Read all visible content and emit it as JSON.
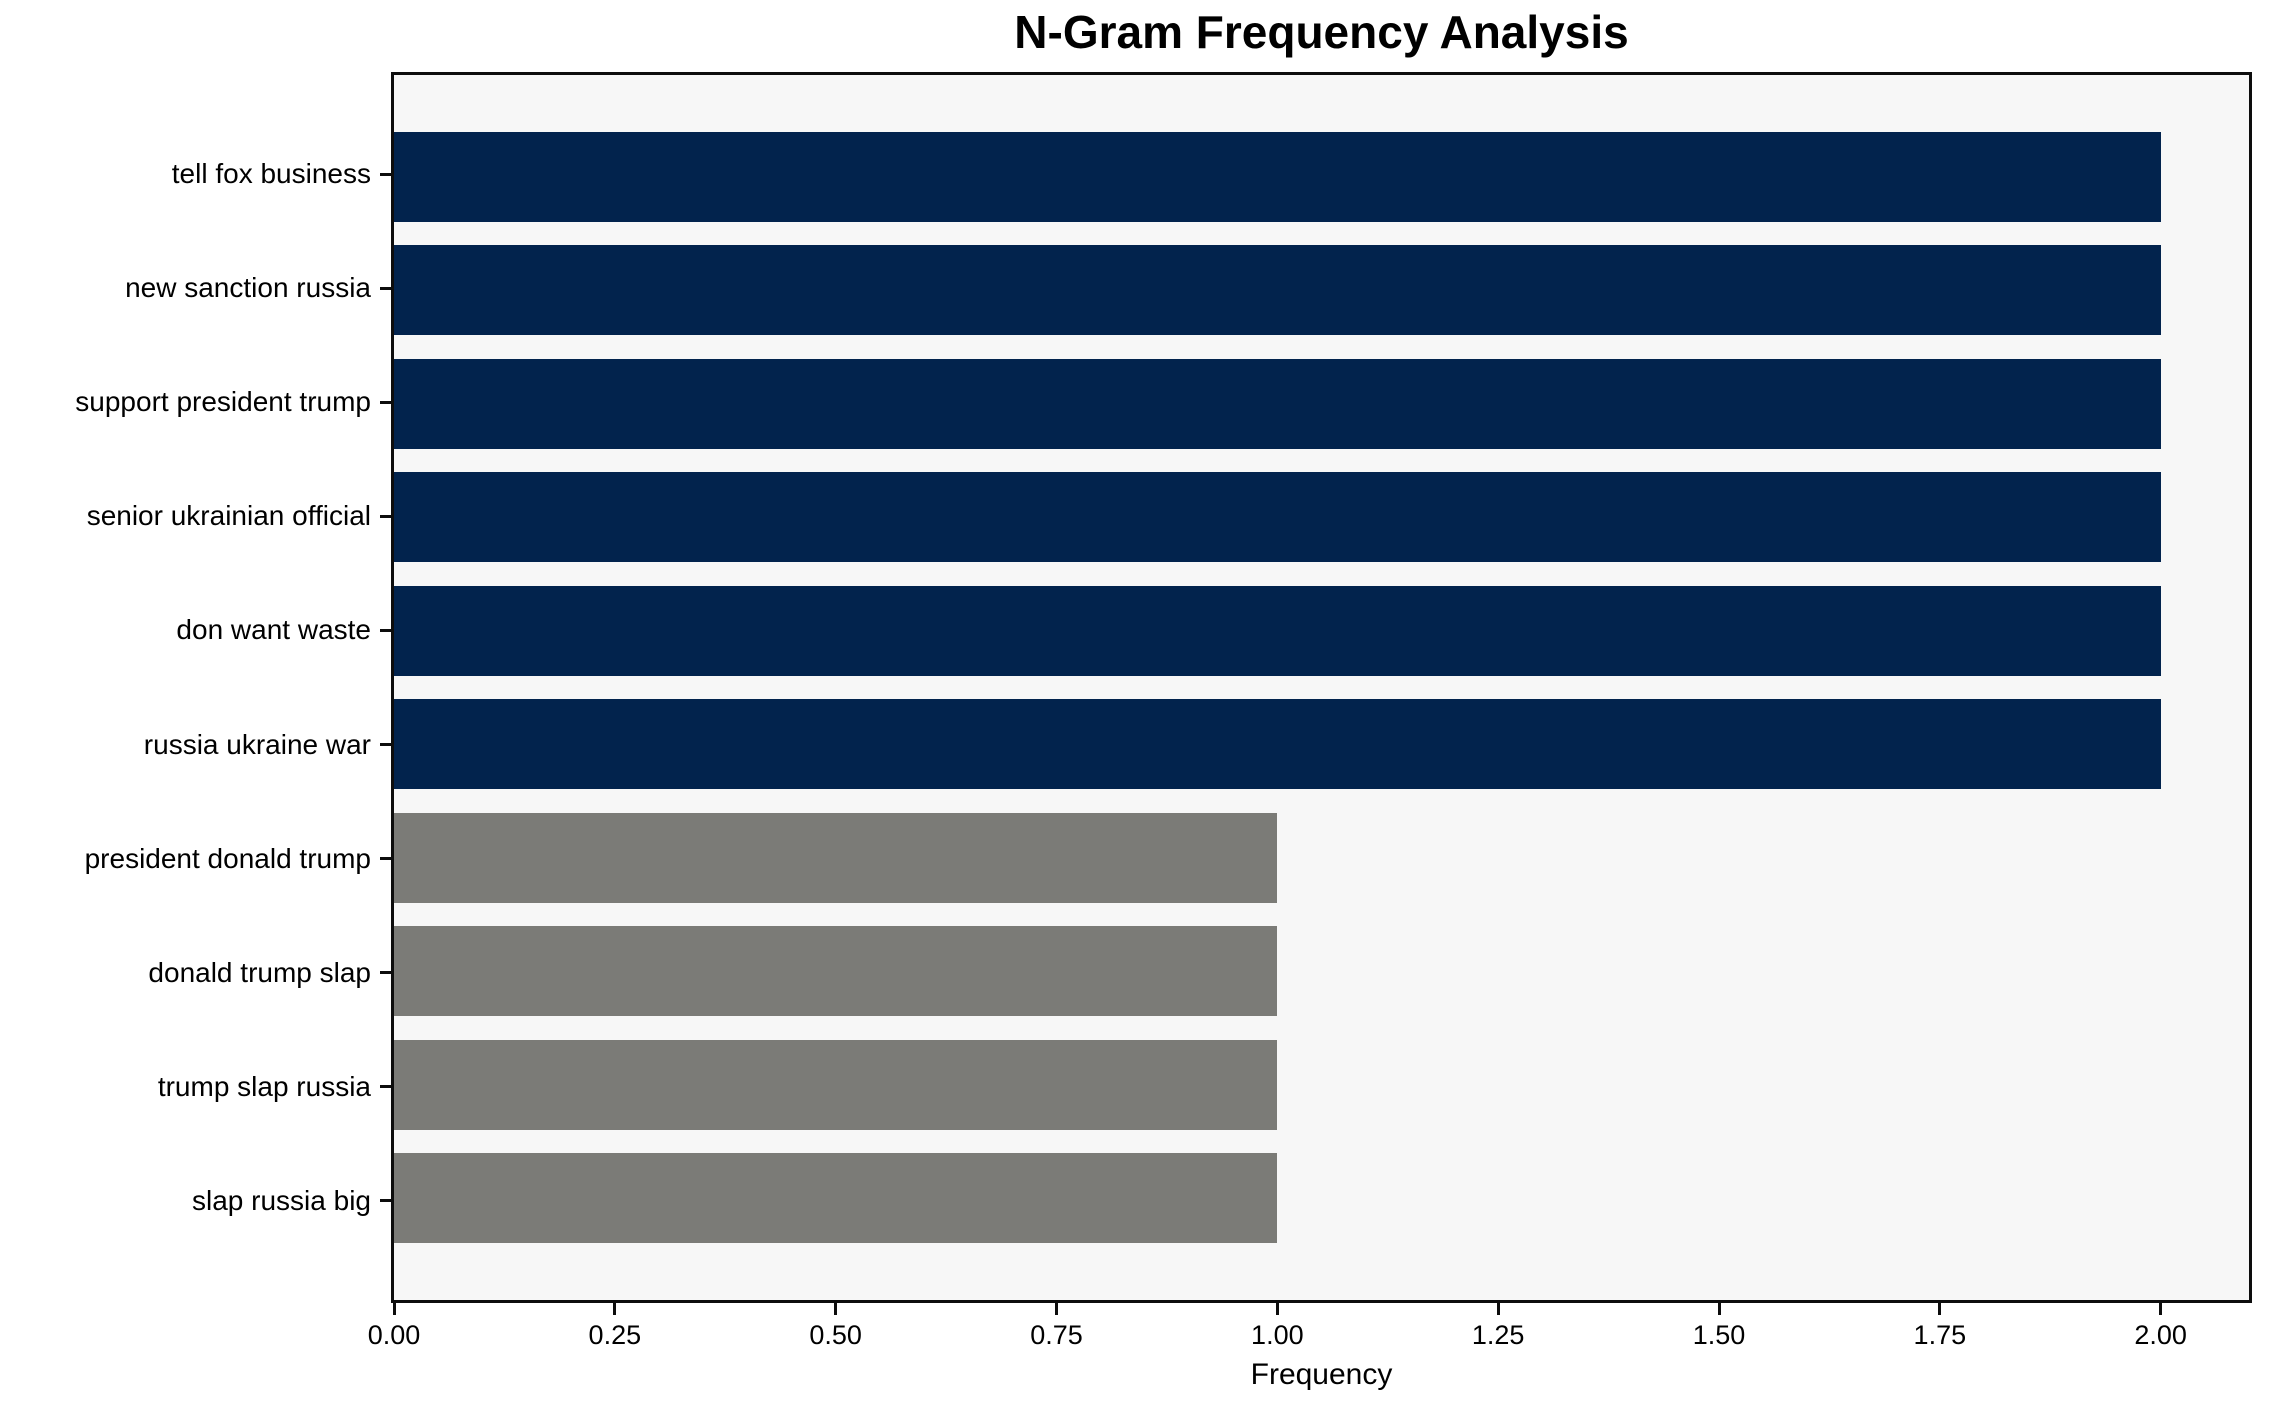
{
  "chart_data": {
    "type": "bar",
    "orientation": "horizontal",
    "title": "N-Gram Frequency Analysis",
    "xlabel": "Frequency",
    "ylabel": "",
    "categories": [
      "tell fox business",
      "new sanction russia",
      "support president trump",
      "senior ukrainian official",
      "don want waste",
      "russia ukraine war",
      "president donald trump",
      "donald trump slap",
      "trump slap russia",
      "slap russia big"
    ],
    "values": [
      2,
      2,
      2,
      2,
      2,
      2,
      1,
      1,
      1,
      1
    ],
    "bar_colors": [
      "#02234d",
      "#02234d",
      "#02234d",
      "#02234d",
      "#02234d",
      "#02234d",
      "#7b7b77",
      "#7b7b77",
      "#7b7b77",
      "#7b7b77"
    ],
    "xlim": [
      0,
      2.1
    ],
    "xticks": [
      0,
      0.25,
      0.5,
      0.75,
      1.0,
      1.25,
      1.5,
      1.75,
      2.0
    ],
    "xtick_labels": [
      "0.00",
      "0.25",
      "0.50",
      "0.75",
      "1.00",
      "1.25",
      "1.50",
      "1.75",
      "2.00"
    ],
    "grid": false,
    "legend": null,
    "colors": {
      "frequency_2_bar": "#02234d",
      "frequency_1_bar": "#7b7b77",
      "plot_background": "#f7f7f7",
      "figure_background": "#ffffff",
      "spine": "#0d0d0d",
      "text": "#000000"
    }
  }
}
